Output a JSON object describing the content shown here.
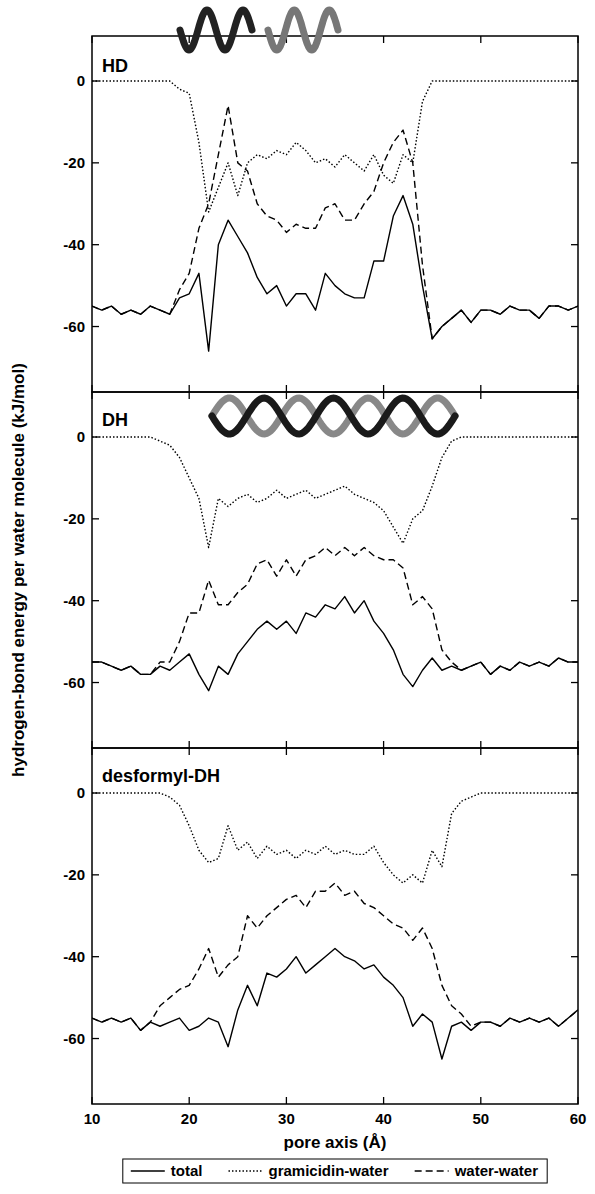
{
  "chart_data": [
    {
      "type": "line",
      "title": "HD",
      "y_label": "hydrogen-bond energy per water molecule (kJ/mol)",
      "x": [
        10,
        11,
        12,
        13,
        14,
        15,
        16,
        17,
        18,
        19,
        20,
        21,
        22,
        23,
        24,
        25,
        26,
        27,
        28,
        29,
        30,
        31,
        32,
        33,
        34,
        35,
        36,
        37,
        38,
        39,
        40,
        41,
        42,
        43,
        44,
        45,
        46,
        47,
        48,
        49,
        50,
        51,
        52,
        53,
        54,
        55,
        56,
        57,
        58,
        59,
        60
      ],
      "series": [
        {
          "color": "#000000",
          "line_style": "solid",
          "values": [
            -55,
            -56,
            -55,
            -57,
            -56,
            -57,
            -55,
            -56,
            -57,
            -53,
            -52,
            -47,
            -66,
            -40,
            -34,
            -38,
            -42,
            -48,
            -52,
            -50,
            -55,
            -52,
            -52,
            -56,
            -47,
            -50,
            -52,
            -53,
            -53,
            -44,
            -44,
            -33,
            -28,
            -35,
            -50,
            -63,
            -60,
            -58,
            -56,
            -59,
            -56,
            -56,
            -57,
            -55,
            -56,
            -56,
            -58,
            -55,
            -55,
            -56,
            -55
          ]
        },
        {
          "color": "#000000",
          "line_style": "dotted",
          "values": [
            0,
            0,
            0,
            0,
            0,
            0,
            0,
            0,
            0,
            -2,
            -3,
            -15,
            -32,
            -26,
            -20,
            -28,
            -20,
            -18,
            -19,
            -17,
            -18,
            -15,
            -17,
            -20,
            -19,
            -21,
            -18,
            -20,
            -22,
            -18,
            -23,
            -25,
            -18,
            -20,
            -5,
            0,
            0,
            0,
            0,
            0,
            0,
            0,
            0,
            0,
            0,
            0,
            0,
            0,
            0,
            0,
            0
          ]
        },
        {
          "color": "#000000",
          "line_style": "dashed",
          "values": [
            -55,
            -56,
            -55,
            -57,
            -56,
            -57,
            -55,
            -56,
            -57,
            -51,
            -47,
            -36,
            -30,
            -18,
            -6,
            -20,
            -22,
            -30,
            -33,
            -34,
            -37,
            -35,
            -36,
            -36,
            -31,
            -30,
            -34,
            -34,
            -30,
            -27,
            -20,
            -15,
            -12,
            -20,
            -45,
            -63,
            -60,
            -58,
            -56,
            -59,
            -56,
            -56,
            -57,
            -55,
            -56,
            -56,
            -58,
            -55,
            -55,
            -56,
            -55
          ]
        }
      ],
      "xlim": [
        10,
        60
      ],
      "xticks": [
        10,
        20,
        30,
        40,
        50,
        60
      ],
      "ylim": [
        -76,
        11
      ],
      "yticks": [
        -60,
        -40,
        -20,
        0
      ],
      "tick_labels": "y"
    },
    {
      "type": "line",
      "title": "DH",
      "x": [
        10,
        11,
        12,
        13,
        14,
        15,
        16,
        17,
        18,
        19,
        20,
        21,
        22,
        23,
        24,
        25,
        26,
        27,
        28,
        29,
        30,
        31,
        32,
        33,
        34,
        35,
        36,
        37,
        38,
        39,
        40,
        41,
        42,
        43,
        44,
        45,
        46,
        47,
        48,
        49,
        50,
        51,
        52,
        53,
        54,
        55,
        56,
        57,
        58,
        59,
        60
      ],
      "series": [
        {
          "color": "#000000",
          "line_style": "solid",
          "values": [
            -55,
            -55,
            -56,
            -57,
            -56,
            -58,
            -58,
            -56,
            -57,
            -55,
            -53,
            -58,
            -62,
            -56,
            -58,
            -53,
            -50,
            -47,
            -45,
            -47,
            -45,
            -48,
            -43,
            -44,
            -41,
            -42,
            -39,
            -43,
            -40,
            -45,
            -48,
            -52,
            -58,
            -61,
            -57,
            -54,
            -57,
            -56,
            -57,
            -56,
            -55,
            -58,
            -56,
            -57,
            -55,
            -56,
            -55,
            -56,
            -54,
            -55,
            -55
          ]
        },
        {
          "color": "#000000",
          "line_style": "dotted",
          "values": [
            0,
            0,
            0,
            0,
            0,
            0,
            0,
            -1,
            -2,
            -5,
            -10,
            -15,
            -27,
            -15,
            -17,
            -15,
            -14,
            -16,
            -15,
            -13,
            -15,
            -14,
            -13,
            -15,
            -14,
            -13,
            -12,
            -14,
            -15,
            -16,
            -18,
            -22,
            -26,
            -20,
            -18,
            -12,
            -5,
            -1,
            0,
            0,
            0,
            0,
            0,
            0,
            0,
            0,
            0,
            0,
            0,
            0,
            0
          ]
        },
        {
          "color": "#000000",
          "line_style": "dashed",
          "values": [
            -55,
            -55,
            -56,
            -57,
            -56,
            -58,
            -58,
            -55,
            -55,
            -50,
            -43,
            -43,
            -35,
            -41,
            -41,
            -38,
            -36,
            -31,
            -30,
            -34,
            -30,
            -34,
            -30,
            -29,
            -27,
            -29,
            -27,
            -29,
            -27,
            -29,
            -30,
            -30,
            -32,
            -41,
            -39,
            -42,
            -52,
            -55,
            -57,
            -56,
            -55,
            -58,
            -56,
            -57,
            -55,
            -56,
            -55,
            -56,
            -54,
            -55,
            -55
          ]
        }
      ],
      "xlim": [
        10,
        60
      ],
      "xticks": [
        10,
        20,
        30,
        40,
        50,
        60
      ],
      "ylim": [
        -76,
        11
      ],
      "yticks": [
        -60,
        -40,
        -20,
        0
      ],
      "tick_labels": "y"
    },
    {
      "type": "line",
      "title": "desformyl-DH",
      "x_label": "pore axis (Å)",
      "legend": "bottom",
      "x": [
        10,
        11,
        12,
        13,
        14,
        15,
        16,
        17,
        18,
        19,
        20,
        21,
        22,
        23,
        24,
        25,
        26,
        27,
        28,
        29,
        30,
        31,
        32,
        33,
        34,
        35,
        36,
        37,
        38,
        39,
        40,
        41,
        42,
        43,
        44,
        45,
        46,
        47,
        48,
        49,
        50,
        51,
        52,
        53,
        54,
        55,
        56,
        57,
        58,
        59,
        60
      ],
      "series": [
        {
          "name": "total",
          "color": "#000000",
          "line_style": "solid",
          "values": [
            -55,
            -56,
            -55,
            -56,
            -55,
            -58,
            -56,
            -57,
            -56,
            -55,
            -58,
            -57,
            -55,
            -56,
            -62,
            -53,
            -47,
            -52,
            -44,
            -45,
            -43,
            -40,
            -44,
            -42,
            -40,
            -38,
            -40,
            -41,
            -43,
            -42,
            -45,
            -47,
            -50,
            -57,
            -54,
            -56,
            -65,
            -57,
            -56,
            -58,
            -56,
            -56,
            -57,
            -55,
            -56,
            -55,
            -56,
            -55,
            -57,
            -55,
            -53
          ]
        },
        {
          "name": "gramicidin-water",
          "color": "#000000",
          "line_style": "dotted",
          "values": [
            0,
            0,
            0,
            0,
            0,
            0,
            0,
            0,
            -1,
            -3,
            -8,
            -14,
            -17,
            -16,
            -8,
            -14,
            -12,
            -16,
            -13,
            -15,
            -14,
            -16,
            -14,
            -15,
            -13,
            -15,
            -14,
            -15,
            -15,
            -13,
            -17,
            -20,
            -22,
            -20,
            -22,
            -14,
            -18,
            -5,
            -2,
            -1,
            0,
            0,
            0,
            0,
            0,
            0,
            0,
            0,
            0,
            0,
            0
          ]
        },
        {
          "name": "water-water",
          "color": "#000000",
          "line_style": "dashed",
          "values": [
            -55,
            -56,
            -55,
            -56,
            -55,
            -58,
            -56,
            -52,
            -50,
            -48,
            -47,
            -43,
            -38,
            -45,
            -42,
            -40,
            -30,
            -33,
            -30,
            -28,
            -26,
            -25,
            -28,
            -24,
            -24,
            -22,
            -25,
            -24,
            -27,
            -28,
            -30,
            -32,
            -33,
            -36,
            -33,
            -38,
            -47,
            -52,
            -54,
            -57,
            -56,
            -56,
            -57,
            -55,
            -56,
            -55,
            -56,
            -55,
            -57,
            -55,
            -53
          ]
        }
      ],
      "xlim": [
        10,
        60
      ],
      "xticks": [
        10,
        20,
        30,
        40,
        50,
        60
      ],
      "ylim": [
        -76,
        11
      ],
      "yticks": [
        -60,
        -40,
        -20,
        0
      ]
    }
  ]
}
